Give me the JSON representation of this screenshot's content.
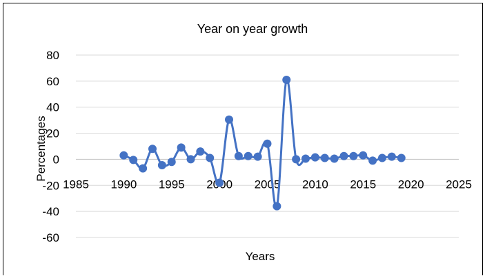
{
  "chart_data": {
    "type": "scatter",
    "mode": "lines+markers",
    "smooth": true,
    "title": "Year on year growth",
    "xlabel": "Years",
    "ylabel": "Percentages",
    "xlim": [
      1985,
      2025
    ],
    "ylim": [
      -60,
      80
    ],
    "xticks": [
      1985,
      1990,
      1995,
      2000,
      2005,
      2010,
      2015,
      2020,
      2025
    ],
    "yticks": [
      80,
      60,
      40,
      20,
      0,
      -20,
      -40,
      -60
    ],
    "grid": "horizontal",
    "legend": "none",
    "series": [
      {
        "color": "#4472C4",
        "x": [
          1990,
          1991,
          1992,
          1993,
          1994,
          1995,
          1996,
          1997,
          1998,
          1999,
          2000,
          2001,
          2002,
          2003,
          2004,
          2005,
          2006,
          2007,
          2008,
          2009,
          2010,
          2011,
          2012,
          2013,
          2014,
          2015,
          2016,
          2017,
          2018,
          2019
        ],
        "y": [
          3,
          -0.5,
          -7,
          8,
          -4.5,
          -2,
          9,
          0,
          6,
          1,
          -18,
          30.5,
          2.5,
          2.5,
          2,
          12,
          -36,
          61,
          0,
          0.5,
          1.5,
          1,
          0.5,
          2.5,
          2.5,
          3,
          -1,
          1,
          2,
          1
        ]
      }
    ]
  },
  "colors": {
    "series": "#4472C4",
    "grid": "#d9d9d9",
    "background": "#ffffff"
  }
}
